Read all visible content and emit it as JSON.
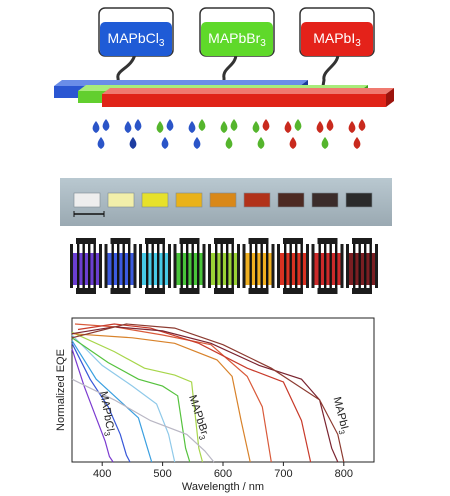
{
  "beakers": [
    {
      "label_main": "MAPbCl",
      "label_sub": "3",
      "color": "#1f5bd6"
    },
    {
      "label_main": "MAPbBr",
      "label_sub": "3",
      "color": "#5fd92a"
    },
    {
      "label_main": "MAPbI",
      "label_sub": "3",
      "color": "#e4221a"
    }
  ],
  "substrate_colors": [
    "#eeeeee",
    "#f2efaa",
    "#e7e12a",
    "#e9b21a",
    "#d98818",
    "#b1321a",
    "#4d2a22",
    "#3b2c2a",
    "#2b2b2b"
  ],
  "droplet_palettes": [
    [
      "#2b55c8",
      "#2b55c8",
      "#2b55c8"
    ],
    [
      "#2b55c8",
      "#2b55c8",
      "#1e3da1"
    ],
    [
      "#55b52d",
      "#2b55c8",
      "#2b55c8"
    ],
    [
      "#2b55c8",
      "#55b52d",
      "#2b55c8"
    ],
    [
      "#55b52d",
      "#55b52d",
      "#55b52d"
    ],
    [
      "#55b52d",
      "#c92a1e",
      "#55b52d"
    ],
    [
      "#c92a1e",
      "#55b52d",
      "#c92a1e"
    ],
    [
      "#c92a1e",
      "#c92a1e",
      "#55b52d"
    ],
    [
      "#c92a1e",
      "#c92a1e",
      "#c92a1e"
    ]
  ],
  "device_colors": [
    "#6b3fd1",
    "#3c5be0",
    "#47c9e6",
    "#49c43a",
    "#9ad236",
    "#f0b020",
    "#d93222",
    "#cc2a2a",
    "#7a1e22"
  ],
  "chart_data": {
    "type": "line",
    "xlabel": "Wavelength / nm",
    "ylabel": "Normalized EQE",
    "xlim": [
      350,
      850
    ],
    "x_ticks": [
      400,
      500,
      600,
      700,
      800
    ],
    "grid": false,
    "annotations": [
      {
        "main": "MAPbCl",
        "sub": "3"
      },
      {
        "main": "MAPbBr",
        "sub": "3"
      },
      {
        "main": "MAPbI",
        "sub": "3"
      }
    ],
    "series": [
      {
        "color": "#7b3ad0",
        "points": [
          [
            350,
            0.82
          ],
          [
            370,
            0.55
          ],
          [
            390,
            0.32
          ],
          [
            405,
            0.15
          ],
          [
            412,
            0.04
          ],
          [
            418,
            0.0
          ]
        ]
      },
      {
        "color": "#3757d8",
        "points": [
          [
            350,
            0.86
          ],
          [
            380,
            0.6
          ],
          [
            410,
            0.4
          ],
          [
            430,
            0.2
          ],
          [
            440,
            0.05
          ],
          [
            446,
            0.0
          ]
        ]
      },
      {
        "color": "#3a9fe0",
        "points": [
          [
            350,
            0.88
          ],
          [
            390,
            0.6
          ],
          [
            430,
            0.44
          ],
          [
            460,
            0.32
          ],
          [
            475,
            0.1
          ],
          [
            482,
            0.0
          ]
        ]
      },
      {
        "color": "#8fc9e9",
        "points": [
          [
            350,
            0.92
          ],
          [
            400,
            0.7
          ],
          [
            450,
            0.55
          ],
          [
            490,
            0.42
          ],
          [
            510,
            0.2
          ],
          [
            520,
            0.0
          ]
        ]
      },
      {
        "color": "#55c23d",
        "points": [
          [
            350,
            0.9
          ],
          [
            410,
            0.72
          ],
          [
            460,
            0.6
          ],
          [
            500,
            0.55
          ],
          [
            525,
            0.48
          ],
          [
            538,
            0.1
          ],
          [
            545,
            0.0
          ]
        ]
      },
      {
        "color": "#a7d64a",
        "points": [
          [
            350,
            0.94
          ],
          [
            420,
            0.8
          ],
          [
            470,
            0.68
          ],
          [
            520,
            0.63
          ],
          [
            548,
            0.58
          ],
          [
            560,
            0.1
          ],
          [
            566,
            0.0
          ]
        ]
      },
      {
        "color": "#b9b7c4",
        "points": [
          [
            350,
            0.6
          ],
          [
            420,
            0.45
          ],
          [
            480,
            0.3
          ],
          [
            540,
            0.2
          ],
          [
            570,
            0.08
          ],
          [
            585,
            0.0
          ]
        ]
      },
      {
        "color": "#d8822a",
        "points": [
          [
            350,
            0.93
          ],
          [
            450,
            0.9
          ],
          [
            520,
            0.86
          ],
          [
            590,
            0.74
          ],
          [
            615,
            0.62
          ],
          [
            630,
            0.3
          ],
          [
            645,
            0.0
          ]
        ]
      },
      {
        "color": "#d95a3a",
        "points": [
          [
            355,
            1.0
          ],
          [
            420,
            0.98
          ],
          [
            500,
            0.92
          ],
          [
            580,
            0.85
          ],
          [
            640,
            0.62
          ],
          [
            665,
            0.4
          ],
          [
            680,
            0.0
          ]
        ]
      },
      {
        "color": "#c83a2a",
        "points": [
          [
            360,
            0.96
          ],
          [
            420,
            1.0
          ],
          [
            480,
            0.97
          ],
          [
            560,
            0.86
          ],
          [
            640,
            0.68
          ],
          [
            700,
            0.58
          ],
          [
            730,
            0.3
          ],
          [
            745,
            0.0
          ]
        ]
      },
      {
        "color": "#7a2430",
        "points": [
          [
            350,
            0.93
          ],
          [
            420,
            0.98
          ],
          [
            500,
            0.95
          ],
          [
            580,
            0.86
          ],
          [
            660,
            0.7
          ],
          [
            730,
            0.6
          ],
          [
            760,
            0.45
          ],
          [
            780,
            0.1
          ],
          [
            790,
            0.0
          ]
        ]
      },
      {
        "color": "#8c3a30",
        "points": [
          [
            350,
            0.9
          ],
          [
            440,
            1.0
          ],
          [
            520,
            0.97
          ],
          [
            600,
            0.85
          ],
          [
            680,
            0.68
          ],
          [
            760,
            0.45
          ],
          [
            790,
            0.2
          ],
          [
            800,
            0.0
          ]
        ]
      }
    ]
  }
}
